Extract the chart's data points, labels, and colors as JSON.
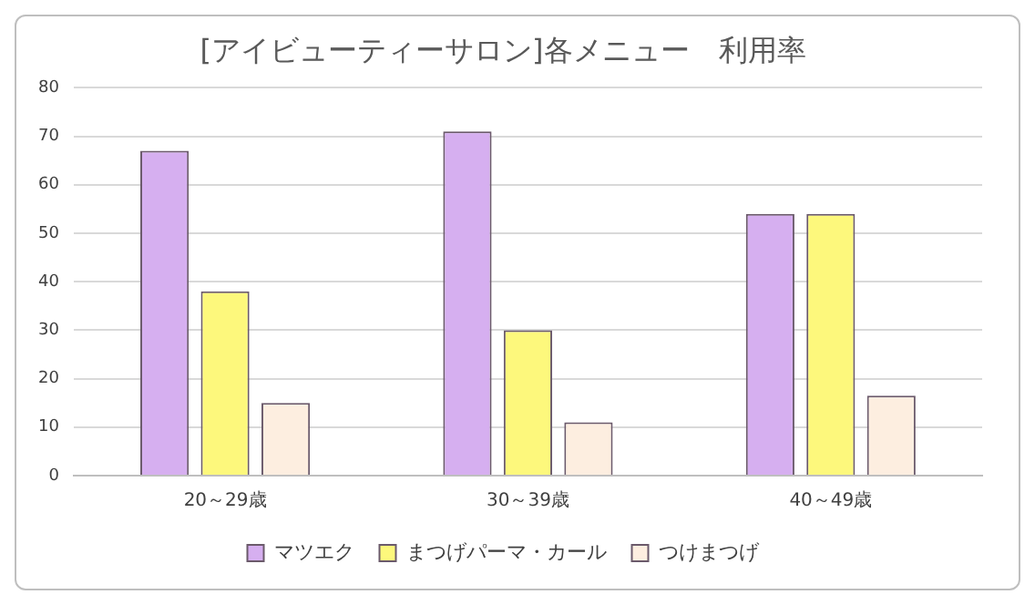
{
  "chart_data": {
    "type": "bar",
    "title": "[アイビューティーサロン]各メニュー　利用率",
    "categories": [
      "20～29歳",
      "30～39歳",
      "40～49歳"
    ],
    "series": [
      {
        "name": "マツエク",
        "color": "#d6aff0",
        "values": [
          67,
          71,
          54
        ]
      },
      {
        "name": "まつげパーマ・カール",
        "color": "#fdf87c",
        "values": [
          38,
          30,
          54
        ]
      },
      {
        "name": "つけまつげ",
        "color": "#fdeee0",
        "values": [
          15,
          11,
          16.5
        ]
      }
    ],
    "ylim": [
      0,
      80
    ],
    "yticks": [
      0,
      10,
      20,
      30,
      40,
      50,
      60,
      70,
      80
    ],
    "grid": "y",
    "legend": "bottom"
  }
}
